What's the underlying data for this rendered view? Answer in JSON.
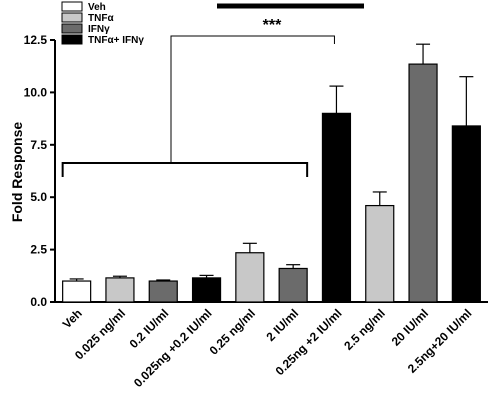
{
  "chart_data": {
    "type": "bar",
    "ylabel": "Fold Response",
    "ylim": [
      0,
      12.5
    ],
    "yticks": [
      "0.0",
      "2.5",
      "5.0",
      "7.5",
      "10.0",
      "12.5"
    ],
    "categories": [
      "Veh",
      "0.025 ng/ml",
      "0.2 IU/ml",
      "0.025ng +0.2 IU/ml",
      "0.25 ng/ml",
      "2 IU/ml",
      "0.25ng +2 IU/ml",
      "2.5 ng/ml",
      "20 IU/ml",
      "2.5ng+20 IU/ml"
    ],
    "values": [
      1.0,
      1.15,
      1.0,
      1.15,
      2.35,
      1.6,
      9.0,
      4.6,
      11.35,
      8.4
    ],
    "errors": [
      0.1,
      0.08,
      0.05,
      0.12,
      0.45,
      0.18,
      1.3,
      0.65,
      0.95,
      2.35
    ],
    "groups": [
      "Veh",
      "TNFα",
      "IFNγ",
      "TNFα+ IFNγ",
      "TNFα",
      "IFNγ",
      "TNFα+ IFNγ",
      "TNFα",
      "IFNγ",
      "TNFα+ IFNγ"
    ],
    "legend": [
      {
        "name": "Veh",
        "color": "#ffffff"
      },
      {
        "name": "TNFα",
        "color": "#c8c8c8"
      },
      {
        "name": "IFNγ",
        "color": "#6b6b6b"
      },
      {
        "name": "TNFα+ IFNγ",
        "color": "#000000"
      }
    ],
    "legend_position": "top-left",
    "annotation": "***",
    "grid": false
  }
}
